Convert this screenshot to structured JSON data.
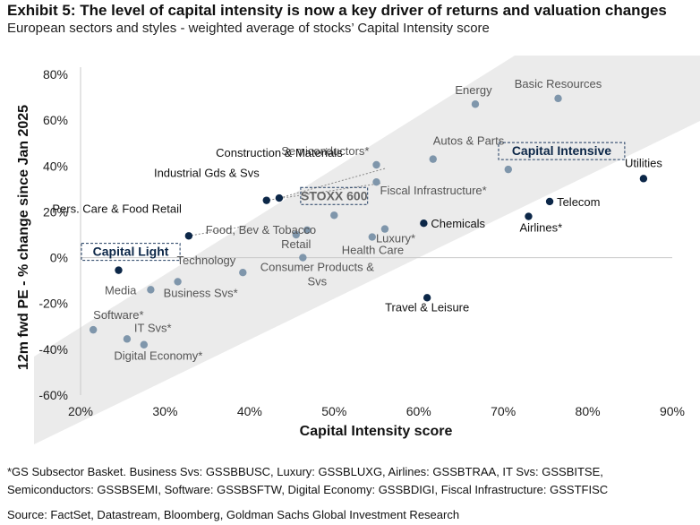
{
  "header": {
    "title": "Exhibit 5: The level of capital intensity is now a key driver of returns and valuation changes",
    "subtitle": "European sectors and styles - weighted average of stocks’ Capital Intensity score"
  },
  "chart_data": {
    "type": "scatter",
    "xlabel": "Capital Intensity score",
    "ylabel": "12m fwd PE - % change since Jan 2025",
    "xlim": [
      20,
      90
    ],
    "ylim": [
      -60,
      80
    ],
    "xticks": [
      20,
      30,
      40,
      50,
      60,
      70,
      80,
      90
    ],
    "xtick_labels": [
      "20%",
      "30%",
      "40%",
      "50%",
      "60%",
      "70%",
      "80%",
      "90%"
    ],
    "yticks": [
      -60,
      -40,
      -20,
      0,
      20,
      40,
      60,
      80
    ],
    "ytick_labels": [
      "-60%",
      "-40%",
      "-20%",
      "0%",
      "20%",
      "40%",
      "60%",
      "80%"
    ],
    "grid": false,
    "colors": {
      "gray": "#7f96ab",
      "navy": "#0c2748",
      "band": "#ebebeb"
    },
    "points": [
      {
        "label": "Energy",
        "x": 66.7,
        "y": 67,
        "color": "gray"
      },
      {
        "label": "Basic Resources",
        "x": 76.5,
        "y": 69.5,
        "color": "gray"
      },
      {
        "label": "Semiconductors*",
        "x": 55,
        "y": 40.5,
        "color": "gray"
      },
      {
        "label": "Autos & Parts",
        "x": 61.7,
        "y": 43,
        "color": "gray"
      },
      {
        "label": "Capital Intensive",
        "x": 70.6,
        "y": 38.5,
        "color": "gray"
      },
      {
        "label": "Utilities",
        "x": 86.6,
        "y": 34.5,
        "color": "navy"
      },
      {
        "label": "Construction & Materials",
        "x": 43.5,
        "y": 26,
        "color": "navy"
      },
      {
        "label": "Industrial Gds & Svs",
        "x": 42,
        "y": 25,
        "color": "navy"
      },
      {
        "label": "Fiscal Infrastructure*",
        "x": 55,
        "y": 33,
        "color": "gray"
      },
      {
        "label": "Telecom",
        "x": 75.5,
        "y": 24.5,
        "color": "navy"
      },
      {
        "label": "STOXX 600",
        "x": 50,
        "y": 18.5,
        "color": "gray"
      },
      {
        "label": "Chemicals",
        "x": 60.6,
        "y": 15,
        "color": "navy"
      },
      {
        "label": "Airlines*",
        "x": 73,
        "y": 18,
        "color": "navy"
      },
      {
        "label": "Pers. Care & Food Retail",
        "x": 32.8,
        "y": 9.5,
        "color": "navy"
      },
      {
        "label": "Food, Bev & Tobacco",
        "x": 46.8,
        "y": 12,
        "color": "gray"
      },
      {
        "label": "Retail",
        "x": 45.5,
        "y": 10,
        "color": "gray"
      },
      {
        "label": "Luxury*",
        "x": 56,
        "y": 12.5,
        "color": "gray"
      },
      {
        "label": "Health Care",
        "x": 54.5,
        "y": 9,
        "color": "gray"
      },
      {
        "label": "Capital Light",
        "x": 24.5,
        "y": -5.5,
        "color": "navy"
      },
      {
        "label": "Technology",
        "x": 39.2,
        "y": -6.5,
        "color": "gray"
      },
      {
        "label": "Consumer Products & Svs",
        "x": 46.3,
        "y": 0,
        "color": "gray"
      },
      {
        "label": "Media",
        "x": 28.3,
        "y": -14,
        "color": "gray"
      },
      {
        "label": "Business Svs*",
        "x": 31.5,
        "y": -10.5,
        "color": "gray"
      },
      {
        "label": "Travel & Leisure",
        "x": 61,
        "y": -17.5,
        "color": "navy"
      },
      {
        "label": "Software*",
        "x": 21.5,
        "y": -31.5,
        "color": "gray"
      },
      {
        "label": "IT Svs*",
        "x": 25.5,
        "y": -35.5,
        "color": "gray"
      },
      {
        "label": "Digital Economy*",
        "x": 27.5,
        "y": -38,
        "color": "gray"
      }
    ]
  },
  "footer": {
    "footnote": "*GS Subsector Basket. Business Svs: GSSBBUSC, Luxury: GSSBLUXG, Airlines: GSSBTRAA, IT Svs: GSSBITSE, Semiconductors: GSSBSEMI, Software: GSSBSFTW, Digital Economy: GSSBDIGI, Fiscal Infrastructure: GSSTFISC",
    "source": "Source: FactSet, Datastream, Bloomberg, Goldman Sachs Global Investment Research"
  }
}
